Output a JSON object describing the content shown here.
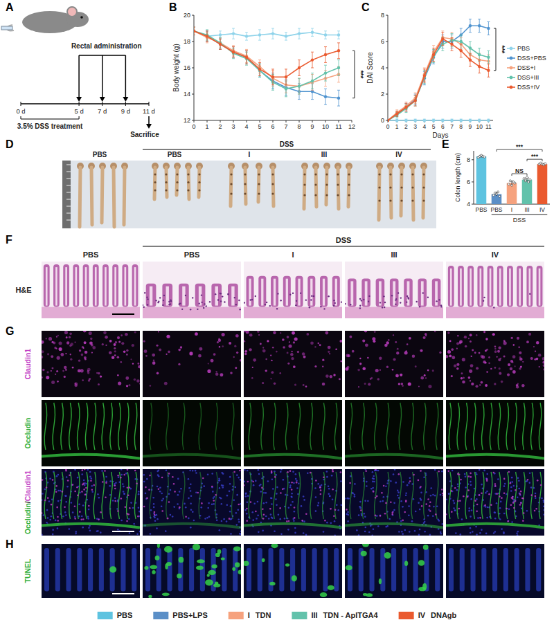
{
  "panel_labels": [
    "A",
    "B",
    "C",
    "D",
    "E",
    "F",
    "G",
    "H"
  ],
  "schematic": {
    "label": "Rectal administration",
    "timeline": {
      "xlim": [
        0,
        11
      ],
      "ticks": [
        {
          "value": 0,
          "label": "0 d"
        },
        {
          "value": 5,
          "label": "5 d"
        },
        {
          "value": 7,
          "label": "7 d"
        },
        {
          "value": 9,
          "label": "9 d"
        },
        {
          "value": 11,
          "label": "11 d"
        }
      ]
    },
    "treatment": "3.5% DSS treatment",
    "end": "Sacrifice"
  },
  "chart_data": [
    {
      "type": "line",
      "ylabel": "Body weight (g)",
      "x": [
        0,
        1,
        2,
        3,
        4,
        5,
        6,
        7,
        8,
        9,
        10,
        11
      ],
      "xlim": [
        0,
        12
      ],
      "xticks": [
        0,
        1,
        2,
        3,
        4,
        5,
        6,
        7,
        8,
        9,
        10,
        11,
        12
      ],
      "ylim": [
        12,
        20
      ],
      "yticks": [
        12,
        14,
        16,
        18,
        20
      ],
      "series": [
        {
          "name": "PBS",
          "color": "#8fd3ea",
          "marker": "circle",
          "values": [
            18.8,
            18.4,
            18.5,
            18.6,
            18.4,
            18.5,
            18.6,
            18.4,
            18.6,
            18.7,
            18.5,
            18.5
          ],
          "errors": [
            0.3,
            0.4,
            0.3,
            0.4,
            0.3,
            0.4,
            0.4,
            0.3,
            0.4,
            0.3,
            0.3,
            0.3
          ]
        },
        {
          "name": "DSS+PBS",
          "color": "#4f93cf",
          "marker": "circle",
          "values": [
            18.8,
            18.4,
            17.8,
            17.2,
            16.8,
            15.8,
            15.0,
            14.5,
            14.2,
            14.2,
            13.8,
            13.7
          ],
          "errors": [
            0.3,
            0.4,
            0.4,
            0.4,
            0.5,
            0.5,
            0.6,
            0.6,
            0.6,
            0.6,
            0.6,
            0.6
          ]
        },
        {
          "name": "DSS+I",
          "color": "#f6a27e",
          "marker": "circle",
          "values": [
            18.8,
            18.3,
            17.9,
            17.3,
            16.9,
            16.1,
            15.2,
            14.7,
            14.6,
            14.9,
            15.2,
            15.5
          ],
          "errors": [
            0.3,
            0.4,
            0.4,
            0.4,
            0.5,
            0.5,
            0.6,
            0.6,
            0.6,
            0.6,
            0.6,
            0.6
          ]
        },
        {
          "name": "DSS+III",
          "color": "#62c2ab",
          "marker": "circle",
          "values": [
            18.8,
            18.5,
            17.9,
            17.1,
            16.7,
            15.8,
            14.9,
            14.4,
            14.6,
            15.0,
            15.6,
            16.0
          ],
          "errors": [
            0.3,
            0.4,
            0.4,
            0.4,
            0.5,
            0.5,
            0.6,
            0.6,
            0.6,
            0.6,
            0.6,
            0.6
          ]
        },
        {
          "name": "DSS+IV",
          "color": "#ea5a2f",
          "marker": "circle",
          "values": [
            18.8,
            18.4,
            17.8,
            17.2,
            16.8,
            15.9,
            15.3,
            15.3,
            16.0,
            16.6,
            17.0,
            17.3
          ],
          "errors": [
            0.3,
            0.4,
            0.4,
            0.4,
            0.5,
            0.5,
            0.6,
            0.6,
            0.6,
            0.6,
            0.6,
            0.6
          ]
        }
      ],
      "annotations": [
        {
          "text": "***",
          "series": [
            "DSS+IV",
            "DSS+PBS"
          ]
        }
      ]
    },
    {
      "type": "line",
      "ylabel": "DAI Score",
      "xlabel": "Days",
      "x": [
        0,
        1,
        2,
        3,
        4,
        5,
        6,
        7,
        8,
        9,
        10,
        11
      ],
      "xlim": [
        0,
        11.5
      ],
      "xticks": [
        0,
        1,
        2,
        3,
        4,
        5,
        6,
        7,
        8,
        9,
        10,
        11
      ],
      "ylim": [
        0,
        8
      ],
      "yticks": [
        0,
        2,
        4,
        6,
        8
      ],
      "legend": "right",
      "series": [
        {
          "name": "PBS",
          "color": "#8fd3ea",
          "marker": "circle",
          "values": [
            0,
            0,
            0,
            0,
            0,
            0,
            0,
            0,
            0,
            0,
            0,
            0
          ],
          "errors": [
            0,
            0.1,
            0.1,
            0.1,
            0.1,
            0.1,
            0.1,
            0.1,
            0.1,
            0.1,
            0.1,
            0.1
          ]
        },
        {
          "name": "DSS+PBS",
          "color": "#4f93cf",
          "marker": "circle",
          "values": [
            0,
            0.5,
            1.0,
            1.6,
            3.2,
            4.8,
            6.0,
            6.0,
            6.5,
            7.2,
            7.2,
            7.0
          ],
          "errors": [
            0,
            0.2,
            0.3,
            0.4,
            0.5,
            0.5,
            0.5,
            0.5,
            0.5,
            0.5,
            0.5,
            0.5
          ]
        },
        {
          "name": "DSS+I",
          "color": "#f6a27e",
          "marker": "circle",
          "values": [
            0,
            0.6,
            1.1,
            1.7,
            3.5,
            5.2,
            6.3,
            6.2,
            5.8,
            5.0,
            4.6,
            4.5
          ],
          "errors": [
            0,
            0.2,
            0.3,
            0.4,
            0.5,
            0.5,
            0.5,
            0.5,
            0.5,
            0.5,
            0.5,
            0.5
          ]
        },
        {
          "name": "DSS+III",
          "color": "#62c2ab",
          "marker": "circle",
          "values": [
            0,
            0.4,
            0.9,
            1.5,
            3.3,
            4.9,
            5.8,
            6.1,
            6.0,
            5.5,
            5.0,
            4.8
          ],
          "errors": [
            0,
            0.2,
            0.3,
            0.4,
            0.5,
            0.5,
            0.5,
            0.5,
            0.5,
            0.5,
            0.5,
            0.5
          ]
        },
        {
          "name": "DSS+IV",
          "color": "#ea5a2f",
          "marker": "circle",
          "values": [
            0,
            0.5,
            1.0,
            1.5,
            3.4,
            5.0,
            6.2,
            5.8,
            5.3,
            4.6,
            4.1,
            3.8
          ],
          "errors": [
            0,
            0.2,
            0.3,
            0.4,
            0.5,
            0.5,
            0.5,
            0.5,
            0.5,
            0.5,
            0.5,
            0.5
          ]
        }
      ],
      "annotations": [
        {
          "text": "***",
          "series": [
            "DSS+PBS",
            "DSS+IV"
          ]
        }
      ]
    },
    {
      "type": "bar",
      "ylabel": "Colon length (cm)",
      "categories": [
        "PBS",
        "PBS",
        "I",
        "III",
        "IV"
      ],
      "values": [
        8.3,
        4.9,
        5.9,
        6.2,
        7.6
      ],
      "errors": [
        0.1,
        0.15,
        0.18,
        0.16,
        0.06
      ],
      "points": [
        [
          8.2,
          8.3,
          8.4,
          8.3,
          8.25
        ],
        [
          4.8,
          5.0,
          4.9,
          5.1,
          4.7
        ],
        [
          5.8,
          6.1,
          5.7,
          6.0,
          5.9
        ],
        [
          6.3,
          6.1,
          6.4,
          6.0,
          6.2
        ],
        [
          7.6,
          7.7,
          7.6,
          7.55,
          7.65
        ]
      ],
      "colors": [
        "#5ec3e0",
        "#5b8fc7",
        "#f6a27e",
        "#62c2ab",
        "#ea5a2f"
      ],
      "ylim": [
        4,
        8.8
      ],
      "yticks": [
        4,
        6,
        8
      ],
      "groups": [
        {
          "label": "DSS",
          "from": 1,
          "to": 4
        }
      ],
      "annotations": [
        {
          "text": "NS",
          "between": [
            2,
            3
          ]
        },
        {
          "text": "***",
          "between": [
            3,
            4
          ]
        },
        {
          "text": "***",
          "between": [
            1,
            4
          ]
        }
      ]
    }
  ],
  "photos": {
    "D": {
      "header": "DSS",
      "columns": [
        "PBS",
        "PBS",
        "I",
        "III",
        "IV"
      ]
    },
    "F": {
      "header": "DSS",
      "columns": [
        "PBS",
        "PBS",
        "I",
        "III",
        "IV"
      ],
      "rows": [
        "H&E"
      ]
    },
    "G": {
      "rows": [
        [
          {
            "text": "Claudin1",
            "color": "#c23fc6"
          }
        ],
        [
          {
            "text": "Occludin",
            "color": "#2fae3a"
          }
        ],
        [
          {
            "text": "Occludin",
            "color": "#2fae3a"
          },
          {
            "text": "/",
            "color": "#222222"
          },
          {
            "text": "Claudin1",
            "color": "#c23fc6"
          }
        ]
      ]
    },
    "H": {
      "rows": [
        [
          {
            "text": "TUNEL",
            "color": "#2fae3a"
          }
        ]
      ]
    }
  },
  "legend_items": [
    {
      "name": "PBS",
      "color": "#5ec3e0"
    },
    {
      "name": "PBS+LPS",
      "color": "#5b8fc7"
    },
    {
      "code": "I",
      "name": "TDN",
      "color": "#f6a27e"
    },
    {
      "code": "III",
      "name": "TDN - ApITGA4",
      "color": "#62c2ab"
    },
    {
      "code": "IV",
      "name": "DNAgb",
      "color": "#ea5a2f"
    }
  ]
}
